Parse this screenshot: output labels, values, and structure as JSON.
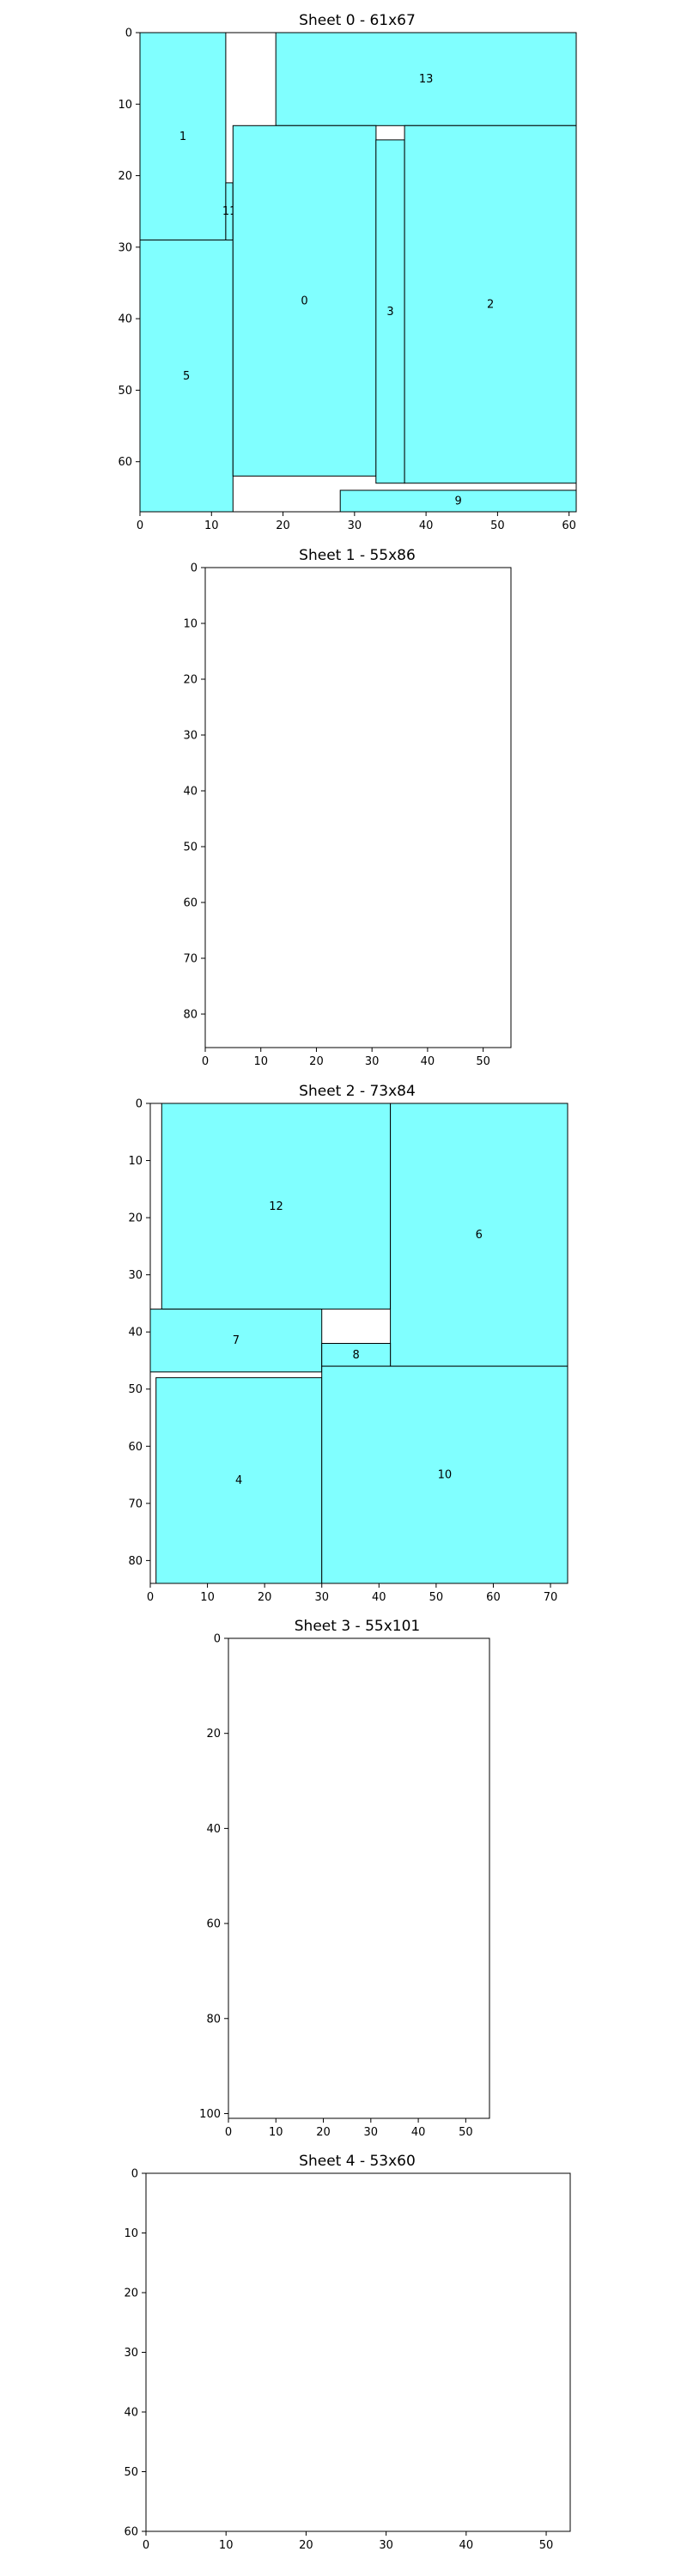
{
  "colors": {
    "piece_fill": "#80ffff",
    "piece_edge": "#000000",
    "frame": "#000000",
    "background": "#ffffff"
  },
  "chart_data": [
    {
      "type": "rectangle-packing",
      "title": "Sheet 0 - 61x67",
      "sheet": {
        "width": 61,
        "height": 67
      },
      "xlim": [
        0,
        61
      ],
      "ylim": [
        67,
        0
      ],
      "y_inverted": true,
      "xticks": [
        0,
        10,
        20,
        30,
        40,
        50,
        60
      ],
      "yticks": [
        0,
        10,
        20,
        30,
        40,
        50,
        60
      ],
      "pieces": [
        {
          "id": "1",
          "x0": 0,
          "x1": 12,
          "y0": 0,
          "y1": 29
        },
        {
          "id": "13",
          "x0": 19,
          "x1": 61,
          "y0": 0,
          "y1": 13
        },
        {
          "id": "11",
          "x0": 12,
          "x1": 13,
          "y0": 21,
          "y1": 29
        },
        {
          "id": "5",
          "x0": 0,
          "x1": 13,
          "y0": 29,
          "y1": 67
        },
        {
          "id": "0",
          "x0": 13,
          "x1": 33,
          "y0": 13,
          "y1": 62
        },
        {
          "id": "3",
          "x0": 33,
          "x1": 37,
          "y0": 15,
          "y1": 63
        },
        {
          "id": "2",
          "x0": 37,
          "x1": 61,
          "y0": 13,
          "y1": 63
        },
        {
          "id": "9",
          "x0": 28,
          "x1": 61,
          "y0": 64,
          "y1": 67
        }
      ]
    },
    {
      "type": "rectangle-packing",
      "title": "Sheet 1 - 55x86",
      "sheet": {
        "width": 55,
        "height": 86
      },
      "xlim": [
        0,
        55
      ],
      "ylim": [
        86,
        0
      ],
      "y_inverted": true,
      "xticks": [
        0,
        10,
        20,
        30,
        40,
        50
      ],
      "yticks": [
        0,
        10,
        20,
        30,
        40,
        50,
        60,
        70,
        80
      ],
      "pieces": []
    },
    {
      "type": "rectangle-packing",
      "title": "Sheet 2 - 73x84",
      "sheet": {
        "width": 73,
        "height": 84
      },
      "xlim": [
        0,
        73
      ],
      "ylim": [
        84,
        0
      ],
      "y_inverted": true,
      "xticks": [
        0,
        10,
        20,
        30,
        40,
        50,
        60,
        70
      ],
      "yticks": [
        0,
        10,
        20,
        30,
        40,
        50,
        60,
        70,
        80
      ],
      "pieces": [
        {
          "id": "12",
          "x0": 2,
          "x1": 42,
          "y0": 0,
          "y1": 36
        },
        {
          "id": "6",
          "x0": 42,
          "x1": 73,
          "y0": 0,
          "y1": 46
        },
        {
          "id": "7",
          "x0": 0,
          "x1": 30,
          "y0": 36,
          "y1": 47
        },
        {
          "id": "8",
          "x0": 30,
          "x1": 42,
          "y0": 42,
          "y1": 46
        },
        {
          "id": "4",
          "x0": 1,
          "x1": 30,
          "y0": 48,
          "y1": 84
        },
        {
          "id": "10",
          "x0": 30,
          "x1": 73,
          "y0": 46,
          "y1": 84
        }
      ]
    },
    {
      "type": "rectangle-packing",
      "title": "Sheet 3 - 55x101",
      "sheet": {
        "width": 55,
        "height": 101
      },
      "xlim": [
        0,
        55
      ],
      "ylim": [
        101,
        0
      ],
      "y_inverted": true,
      "xticks": [
        0,
        10,
        20,
        30,
        40,
        50
      ],
      "yticks": [
        0,
        20,
        40,
        60,
        80,
        100
      ],
      "pieces": []
    },
    {
      "type": "rectangle-packing",
      "title": "Sheet 4 - 53x60",
      "sheet": {
        "width": 53,
        "height": 60
      },
      "xlim": [
        0,
        53
      ],
      "ylim": [
        60,
        0
      ],
      "y_inverted": true,
      "xticks": [
        0,
        10,
        20,
        30,
        40,
        50
      ],
      "yticks": [
        0,
        10,
        20,
        30,
        40,
        50,
        60
      ],
      "pieces": []
    }
  ]
}
